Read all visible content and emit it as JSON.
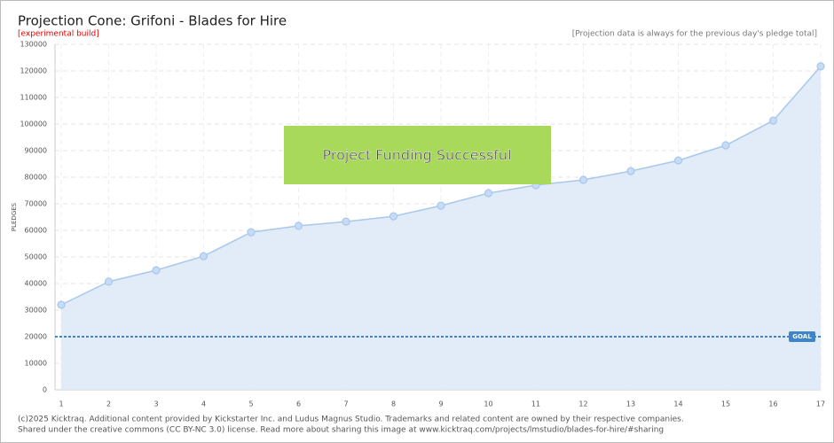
{
  "chart_data": {
    "type": "line",
    "title": "Projection Cone: Grifoni - Blades for Hire",
    "build_note": "[experimental build]",
    "projection_note": "[Projection data is always for the previous day's pledge total]",
    "y_label": "PLEDGES",
    "banner": "Project Funding Successful",
    "categories": [
      "1",
      "2",
      "3",
      "4",
      "5",
      "6",
      "7",
      "8",
      "9",
      "10",
      "11",
      "12",
      "13",
      "14",
      "15",
      "16",
      "17"
    ],
    "values": [
      32000,
      40700,
      45000,
      50300,
      59300,
      61700,
      63300,
      65300,
      69300,
      74000,
      77000,
      79000,
      82300,
      86300,
      92000,
      101300,
      121700
    ],
    "color": "#a8c8ec",
    "goal": {
      "value": 20000,
      "label": "GOAL",
      "color": "#3d85c6"
    },
    "ylim": [
      0,
      130000
    ],
    "yticks": [
      0,
      10000,
      20000,
      30000,
      40000,
      50000,
      60000,
      70000,
      80000,
      90000,
      100000,
      110000,
      120000,
      130000
    ],
    "grid": true,
    "footer": [
      "(c)2025 Kicktraq. Additional content provided by Kickstarter Inc. and Ludus Magnus Studio. Trademarks and related content are owned by their respective companies.",
      "Shared under the creative commons (CC BY-NC 3.0) license. Read more about sharing this image at www.kicktraq.com/projects/lmstudio/blades-for-hire/#sharing"
    ]
  }
}
